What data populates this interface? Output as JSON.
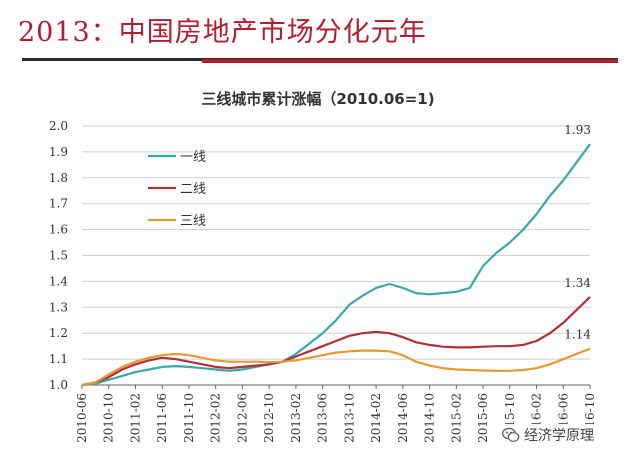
{
  "slide": {
    "title": "2013：中国房地产市场分化元年"
  },
  "watermark": {
    "text": "经济学原理",
    "icon": "wechat-icon"
  },
  "chart_data": {
    "type": "line",
    "title": "三线城市累计涨幅（2010.06=1)",
    "xlabel": "",
    "ylabel": "",
    "ylim": [
      1.0,
      2.0
    ],
    "yticks": [
      "1.0",
      "1.1",
      "1.2",
      "1.3",
      "1.4",
      "1.5",
      "1.6",
      "1.7",
      "1.8",
      "1.9",
      "2.0"
    ],
    "xticks": [
      "2010-06",
      "2010-10",
      "2011-02",
      "2011-06",
      "2011-10",
      "2012-02",
      "2012-06",
      "2012-10",
      "2013-02",
      "2013-06",
      "2013-10",
      "2014-02",
      "2014-06",
      "2014-10",
      "2015-02",
      "2015-06",
      "2015-10",
      "2016-02",
      "2016-06",
      "2016-10"
    ],
    "grid": "horizontal",
    "legend_position": "top-left",
    "series": [
      {
        "name": "一线",
        "color": "#3aa8a8",
        "end_label": "1.93",
        "points": [
          [
            "2010-06",
            1.0
          ],
          [
            "2010-08",
            1.005
          ],
          [
            "2010-10",
            1.02
          ],
          [
            "2010-12",
            1.035
          ],
          [
            "2011-02",
            1.05
          ],
          [
            "2011-04",
            1.06
          ],
          [
            "2011-06",
            1.07
          ],
          [
            "2011-08",
            1.073
          ],
          [
            "2011-10",
            1.07
          ],
          [
            "2011-12",
            1.065
          ],
          [
            "2012-02",
            1.06
          ],
          [
            "2012-04",
            1.055
          ],
          [
            "2012-06",
            1.06
          ],
          [
            "2012-08",
            1.07
          ],
          [
            "2012-10",
            1.08
          ],
          [
            "2012-12",
            1.09
          ],
          [
            "2013-02",
            1.12
          ],
          [
            "2013-04",
            1.16
          ],
          [
            "2013-06",
            1.2
          ],
          [
            "2013-08",
            1.25
          ],
          [
            "2013-10",
            1.31
          ],
          [
            "2013-12",
            1.345
          ],
          [
            "2014-02",
            1.375
          ],
          [
            "2014-04",
            1.39
          ],
          [
            "2014-06",
            1.375
          ],
          [
            "2014-08",
            1.355
          ],
          [
            "2014-10",
            1.35
          ],
          [
            "2014-12",
            1.355
          ],
          [
            "2015-02",
            1.36
          ],
          [
            "2015-04",
            1.375
          ],
          [
            "2015-06",
            1.46
          ],
          [
            "2015-08",
            1.51
          ],
          [
            "2015-10",
            1.55
          ],
          [
            "2015-12",
            1.6
          ],
          [
            "2016-02",
            1.66
          ],
          [
            "2016-04",
            1.73
          ],
          [
            "2016-06",
            1.79
          ],
          [
            "2016-08",
            1.86
          ],
          [
            "2016-10",
            1.93
          ]
        ]
      },
      {
        "name": "二线",
        "color": "#b0303a",
        "end_label": "1.34",
        "points": [
          [
            "2010-06",
            1.0
          ],
          [
            "2010-08",
            1.01
          ],
          [
            "2010-10",
            1.03
          ],
          [
            "2010-12",
            1.06
          ],
          [
            "2011-02",
            1.08
          ],
          [
            "2011-04",
            1.095
          ],
          [
            "2011-06",
            1.105
          ],
          [
            "2011-08",
            1.1
          ],
          [
            "2011-10",
            1.09
          ],
          [
            "2011-12",
            1.08
          ],
          [
            "2012-02",
            1.07
          ],
          [
            "2012-04",
            1.065
          ],
          [
            "2012-06",
            1.07
          ],
          [
            "2012-08",
            1.075
          ],
          [
            "2012-10",
            1.08
          ],
          [
            "2012-12",
            1.09
          ],
          [
            "2013-02",
            1.11
          ],
          [
            "2013-04",
            1.13
          ],
          [
            "2013-06",
            1.15
          ],
          [
            "2013-08",
            1.17
          ],
          [
            "2013-10",
            1.19
          ],
          [
            "2013-12",
            1.2
          ],
          [
            "2014-02",
            1.205
          ],
          [
            "2014-04",
            1.2
          ],
          [
            "2014-06",
            1.185
          ],
          [
            "2014-08",
            1.165
          ],
          [
            "2014-10",
            1.155
          ],
          [
            "2014-12",
            1.148
          ],
          [
            "2015-02",
            1.145
          ],
          [
            "2015-04",
            1.145
          ],
          [
            "2015-06",
            1.148
          ],
          [
            "2015-08",
            1.15
          ],
          [
            "2015-10",
            1.15
          ],
          [
            "2015-12",
            1.155
          ],
          [
            "2016-02",
            1.17
          ],
          [
            "2016-04",
            1.2
          ],
          [
            "2016-06",
            1.24
          ],
          [
            "2016-08",
            1.29
          ],
          [
            "2016-10",
            1.34
          ]
        ]
      },
      {
        "name": "三线",
        "color": "#e39a32",
        "end_label": "1.14",
        "points": [
          [
            "2010-06",
            1.0
          ],
          [
            "2010-08",
            1.01
          ],
          [
            "2010-10",
            1.04
          ],
          [
            "2010-12",
            1.07
          ],
          [
            "2011-02",
            1.09
          ],
          [
            "2011-04",
            1.105
          ],
          [
            "2011-06",
            1.115
          ],
          [
            "2011-08",
            1.12
          ],
          [
            "2011-10",
            1.115
          ],
          [
            "2011-12",
            1.105
          ],
          [
            "2012-02",
            1.095
          ],
          [
            "2012-04",
            1.09
          ],
          [
            "2012-06",
            1.09
          ],
          [
            "2012-08",
            1.09
          ],
          [
            "2012-10",
            1.088
          ],
          [
            "2012-12",
            1.09
          ],
          [
            "2013-02",
            1.095
          ],
          [
            "2013-04",
            1.105
          ],
          [
            "2013-06",
            1.115
          ],
          [
            "2013-08",
            1.125
          ],
          [
            "2013-10",
            1.13
          ],
          [
            "2013-12",
            1.133
          ],
          [
            "2014-02",
            1.133
          ],
          [
            "2014-04",
            1.13
          ],
          [
            "2014-06",
            1.115
          ],
          [
            "2014-08",
            1.09
          ],
          [
            "2014-10",
            1.075
          ],
          [
            "2014-12",
            1.065
          ],
          [
            "2015-02",
            1.06
          ],
          [
            "2015-04",
            1.058
          ],
          [
            "2015-06",
            1.056
          ],
          [
            "2015-08",
            1.055
          ],
          [
            "2015-10",
            1.055
          ],
          [
            "2015-12",
            1.058
          ],
          [
            "2016-02",
            1.065
          ],
          [
            "2016-04",
            1.08
          ],
          [
            "2016-06",
            1.1
          ],
          [
            "2016-08",
            1.12
          ],
          [
            "2016-10",
            1.14
          ]
        ]
      }
    ]
  }
}
